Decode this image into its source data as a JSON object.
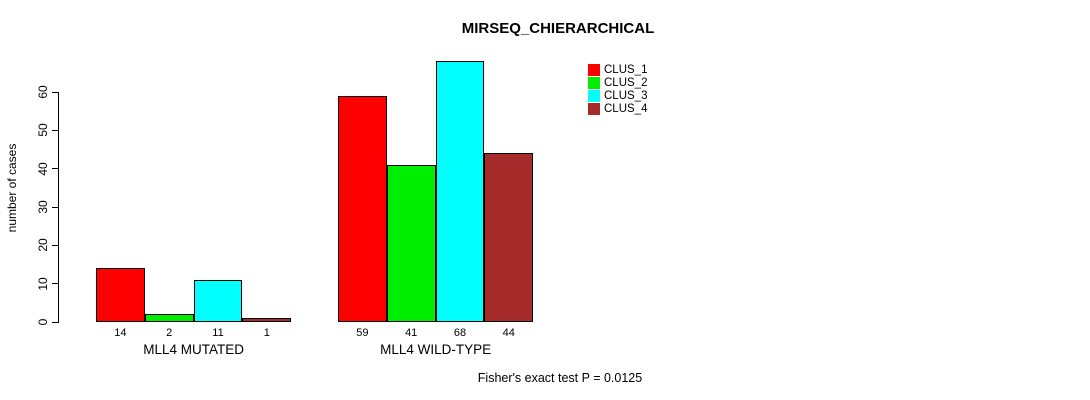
{
  "chart_data": {
    "type": "bar",
    "title": "MIRSEQ_CHIERARCHICAL",
    "ylabel": "number of cases",
    "xlabel": "",
    "footnote": "Fisher's exact test P = 0.0125",
    "categories": [
      "MLL4 MUTATED",
      "MLL4 WILD-TYPE"
    ],
    "series": [
      {
        "name": "CLUS_1",
        "color": "#ff0000",
        "values": [
          14,
          59
        ]
      },
      {
        "name": "CLUS_2",
        "color": "#00ee00",
        "values": [
          2,
          41
        ]
      },
      {
        "name": "CLUS_3",
        "color": "#00ffff",
        "values": [
          11,
          68
        ]
      },
      {
        "name": "CLUS_4",
        "color": "#a52a2a",
        "values": [
          1,
          44
        ]
      }
    ],
    "bar_value_labels": [
      [
        "14",
        "2",
        "11",
        "1"
      ],
      [
        "59",
        "41",
        "68",
        "44"
      ]
    ],
    "yticks": [
      0,
      10,
      20,
      30,
      40,
      50,
      60
    ],
    "ylim": [
      0,
      60
    ],
    "grid": false,
    "legend_position": "top-right"
  }
}
